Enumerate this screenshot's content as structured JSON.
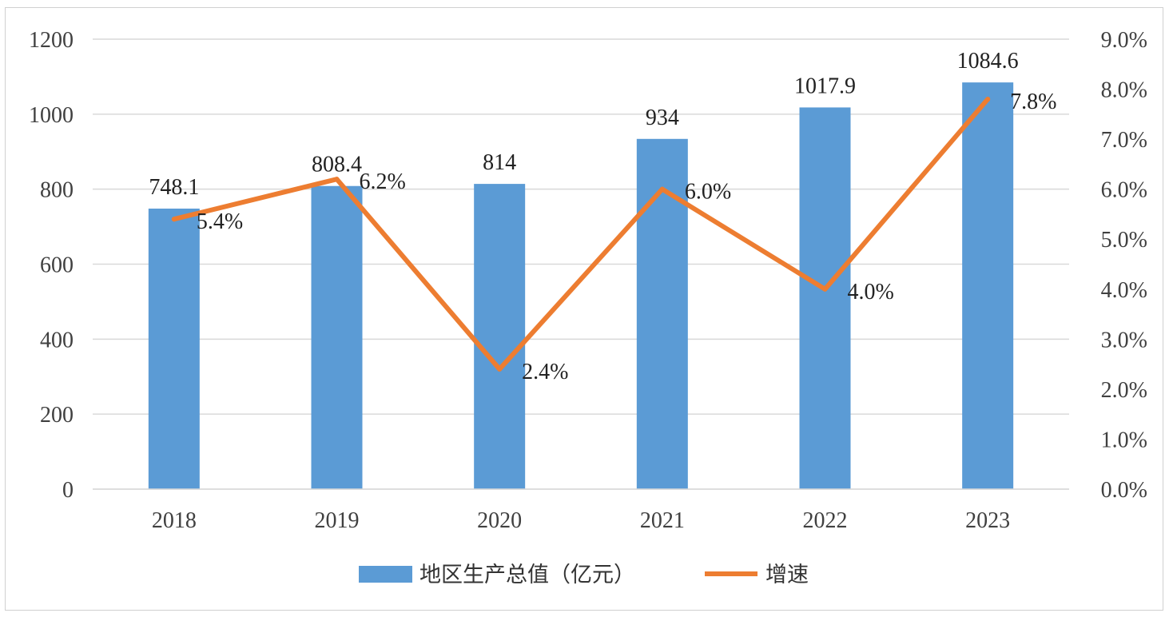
{
  "chart_data": {
    "type": "bar+line",
    "categories": [
      "2018",
      "2019",
      "2020",
      "2021",
      "2022",
      "2023"
    ],
    "series": [
      {
        "name": "地区生产总值（亿元）",
        "type": "bar",
        "axis": "left",
        "values": [
          748.1,
          808.4,
          814,
          934,
          1017.9,
          1084.6
        ],
        "labels": [
          "748.1",
          "808.4",
          "814",
          "934",
          "1017.9",
          "1084.6"
        ],
        "color": "#5b9bd5"
      },
      {
        "name": "增速",
        "type": "line",
        "axis": "right",
        "values": [
          5.4,
          6.2,
          2.4,
          6.0,
          4.0,
          7.8
        ],
        "labels": [
          "5.4%",
          "6.2%",
          "2.4%",
          "6.0%",
          "4.0%",
          "7.8%"
        ],
        "color": "#ed7d31"
      }
    ],
    "y_left": {
      "range": [
        0,
        1200
      ],
      "ticks": [
        "0",
        "200",
        "400",
        "600",
        "800",
        "1000",
        "1200"
      ]
    },
    "y_right": {
      "range": [
        0,
        9
      ],
      "ticks": [
        "0.0%",
        "1.0%",
        "2.0%",
        "3.0%",
        "4.0%",
        "5.0%",
        "6.0%",
        "7.0%",
        "8.0%",
        "9.0%"
      ]
    },
    "grid": true,
    "legend_position": "bottom"
  }
}
